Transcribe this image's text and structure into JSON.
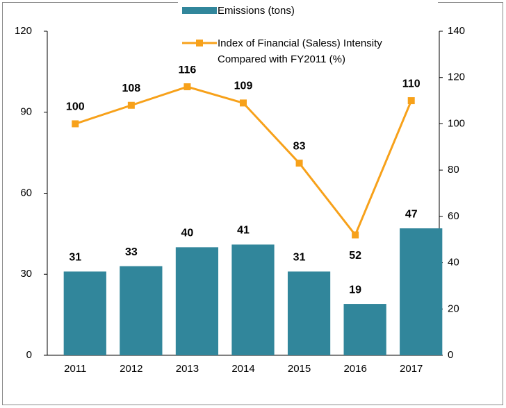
{
  "chart_data": {
    "type": "bar_line",
    "categories": [
      "2011",
      "2012",
      "2013",
      "2014",
      "2015",
      "2016",
      "2017"
    ],
    "series": [
      {
        "name": "Emissions (tons)",
        "type": "bar",
        "color": "#31869b",
        "values": [
          31,
          33,
          40,
          41,
          31,
          19,
          47
        ]
      },
      {
        "name": "Index of Financial (Saless) Intensity Compared with FY2011 (%)",
        "type": "line",
        "axis": "y2",
        "color": "#f7a11a",
        "values": [
          100,
          108,
          116,
          109,
          83,
          52,
          110
        ]
      }
    ],
    "ylim": [
      0,
      120
    ],
    "yticks": [
      0,
      30,
      60,
      90,
      120
    ],
    "y2lim": [
      0,
      140
    ],
    "y2ticks": [
      0,
      20,
      40,
      60,
      80,
      100,
      120,
      140
    ],
    "legend": "top"
  }
}
